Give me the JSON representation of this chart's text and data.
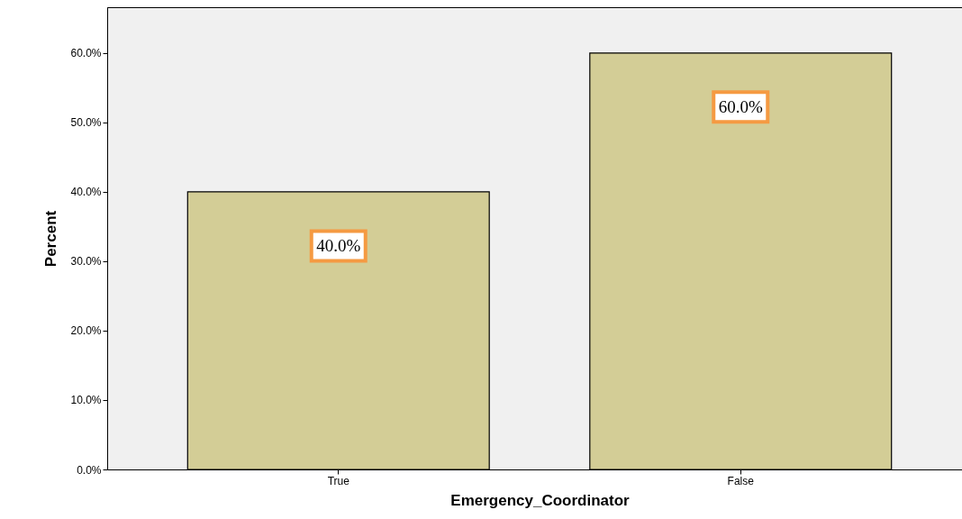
{
  "chart_data": {
    "type": "bar",
    "xlabel": "Emergency_Coordinator",
    "ylabel": "Percent",
    "categories": [
      "True",
      "False"
    ],
    "values": [
      40.0,
      60.0
    ],
    "value_labels": [
      "40.0%",
      "60.0%"
    ],
    "color": "#d3cd96",
    "ylim": [
      0,
      66.6
    ],
    "yticks": [
      {
        "value": 0,
        "label": "0.0%"
      },
      {
        "value": 10,
        "label": "10.0%"
      },
      {
        "value": 20,
        "label": "20.0%"
      },
      {
        "value": 30,
        "label": "30.0%"
      },
      {
        "value": 40,
        "label": "40.0%"
      },
      {
        "value": 50,
        "label": "50.0%"
      },
      {
        "value": 60,
        "label": "60.0%"
      }
    ]
  }
}
